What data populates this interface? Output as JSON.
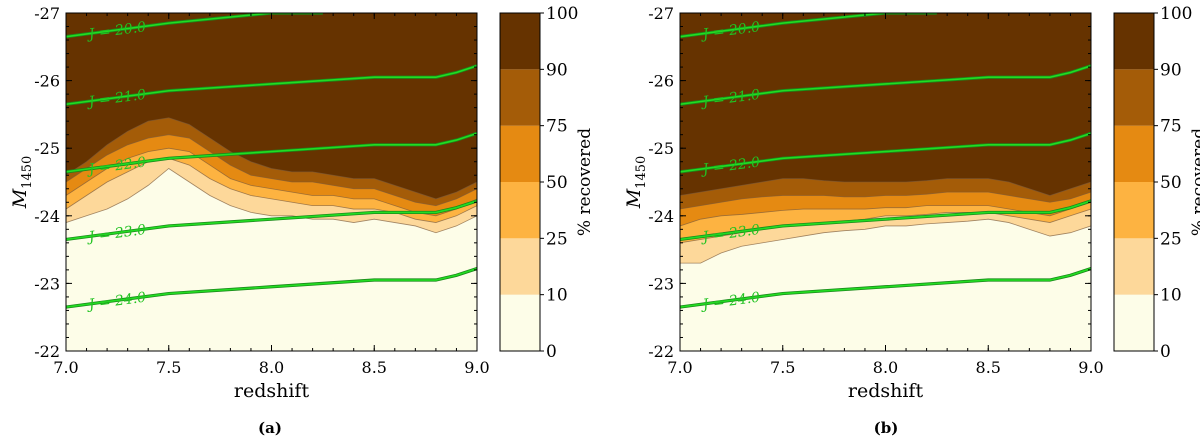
{
  "chart_data": [
    {
      "type": "contourf",
      "panel_label": "(a)",
      "xlabel": "redshift",
      "ylabel": "M",
      "ylabel_sub": "1450",
      "xlim": [
        7.0,
        9.0
      ],
      "ylim": [
        -22,
        -27
      ],
      "x_ticks": [
        "7.0",
        "7.5",
        "8.0",
        "8.5",
        "9.0"
      ],
      "y_ticks": [
        "-27",
        "-26",
        "-25",
        "-24",
        "-23",
        "-22"
      ],
      "colorbar": {
        "label": "% recovered",
        "levels": [
          0,
          10,
          25,
          50,
          75,
          90,
          100
        ],
        "tick_labels": [
          "0",
          "10",
          "25",
          "50",
          "75",
          "90",
          "100"
        ],
        "colors": [
          "#fdfde8",
          "#fdd89a",
          "#fdb341",
          "#e58a12",
          "#a45c08",
          "#663300"
        ]
      },
      "x": [
        7.0,
        7.1,
        7.2,
        7.3,
        7.4,
        7.5,
        7.6,
        7.7,
        7.8,
        7.9,
        8.0,
        8.1,
        8.2,
        8.3,
        8.4,
        8.5,
        8.6,
        8.7,
        8.8,
        8.9,
        9.0
      ],
      "recovery_boundaries": [
        {
          "level": 10,
          "M": [
            -23.9,
            -24.0,
            -24.1,
            -24.25,
            -24.45,
            -24.7,
            -24.5,
            -24.3,
            -24.15,
            -24.05,
            -24.0,
            -24.0,
            -23.95,
            -23.95,
            -23.9,
            -23.95,
            -23.9,
            -23.85,
            -23.75,
            -23.85,
            -24.0
          ]
        },
        {
          "level": 25,
          "M": [
            -24.1,
            -24.3,
            -24.5,
            -24.65,
            -24.8,
            -24.85,
            -24.75,
            -24.55,
            -24.4,
            -24.3,
            -24.25,
            -24.2,
            -24.15,
            -24.15,
            -24.1,
            -24.1,
            -24.05,
            -23.95,
            -23.9,
            -24.0,
            -24.15
          ]
        },
        {
          "level": 50,
          "M": [
            -24.3,
            -24.5,
            -24.7,
            -24.85,
            -24.95,
            -25.0,
            -24.95,
            -24.75,
            -24.55,
            -24.45,
            -24.4,
            -24.35,
            -24.3,
            -24.3,
            -24.25,
            -24.25,
            -24.15,
            -24.05,
            -24.0,
            -24.1,
            -24.25
          ]
        },
        {
          "level": 75,
          "M": [
            -24.5,
            -24.7,
            -24.9,
            -25.05,
            -25.15,
            -25.2,
            -25.15,
            -24.95,
            -24.75,
            -24.6,
            -24.55,
            -24.5,
            -24.5,
            -24.45,
            -24.4,
            -24.4,
            -24.3,
            -24.2,
            -24.15,
            -24.25,
            -24.4
          ]
        },
        {
          "level": 90,
          "M": [
            -24.6,
            -24.8,
            -25.05,
            -25.25,
            -25.4,
            -25.45,
            -25.35,
            -25.15,
            -24.95,
            -24.8,
            -24.7,
            -24.65,
            -24.65,
            -24.6,
            -24.55,
            -24.55,
            -24.45,
            -24.35,
            -24.25,
            -24.35,
            -24.5
          ]
        }
      ],
      "magnitude_contours": [
        {
          "label": "J = 20.0",
          "x": [
            7.0,
            7.5,
            8.0,
            8.25
          ],
          "M": [
            -26.65,
            -26.85,
            -27.0,
            -27.0
          ]
        },
        {
          "label": "J = 21.0",
          "x": [
            7.0,
            7.5,
            8.0,
            8.5,
            8.8,
            8.9,
            9.0
          ],
          "M": [
            -25.65,
            -25.85,
            -25.95,
            -26.05,
            -26.05,
            -26.12,
            -26.22
          ]
        },
        {
          "label": "J = 22.0",
          "x": [
            7.0,
            7.5,
            8.0,
            8.5,
            8.8,
            8.9,
            9.0
          ],
          "M": [
            -24.65,
            -24.85,
            -24.95,
            -25.05,
            -25.05,
            -25.12,
            -25.22
          ]
        },
        {
          "label": "J = 23.0",
          "x": [
            7.0,
            7.5,
            8.0,
            8.5,
            8.8,
            8.9,
            9.0
          ],
          "M": [
            -23.65,
            -23.85,
            -23.95,
            -24.05,
            -24.05,
            -24.12,
            -24.22
          ]
        },
        {
          "label": "J = 24.0",
          "x": [
            7.0,
            7.5,
            8.0,
            8.5,
            8.8,
            8.9,
            9.0
          ],
          "M": [
            -22.65,
            -22.85,
            -22.95,
            -23.05,
            -23.05,
            -23.12,
            -23.22
          ]
        }
      ]
    },
    {
      "type": "contourf",
      "panel_label": "(b)",
      "xlabel": "redshift",
      "ylabel": "M",
      "ylabel_sub": "1450",
      "xlim": [
        7.0,
        9.0
      ],
      "ylim": [
        -22,
        -27
      ],
      "x_ticks": [
        "7.0",
        "7.5",
        "8.0",
        "8.5",
        "9.0"
      ],
      "y_ticks": [
        "-27",
        "-26",
        "-25",
        "-24",
        "-23",
        "-22"
      ],
      "colorbar": {
        "label": "% recovered",
        "levels": [
          0,
          10,
          25,
          50,
          75,
          90,
          100
        ],
        "tick_labels": [
          "0",
          "10",
          "25",
          "50",
          "75",
          "90",
          "100"
        ],
        "colors": [
          "#fdfde8",
          "#fdd89a",
          "#fdb341",
          "#e58a12",
          "#a45c08",
          "#663300"
        ]
      },
      "x": [
        7.0,
        7.1,
        7.2,
        7.3,
        7.4,
        7.5,
        7.6,
        7.7,
        7.8,
        7.9,
        8.0,
        8.1,
        8.2,
        8.3,
        8.4,
        8.5,
        8.6,
        8.7,
        8.8,
        8.9,
        9.0
      ],
      "recovery_boundaries": [
        {
          "level": 10,
          "M": [
            -23.3,
            -23.3,
            -23.45,
            -23.55,
            -23.6,
            -23.65,
            -23.7,
            -23.75,
            -23.78,
            -23.8,
            -23.85,
            -23.85,
            -23.88,
            -23.9,
            -23.92,
            -23.95,
            -23.9,
            -23.8,
            -23.7,
            -23.75,
            -23.85
          ]
        },
        {
          "level": 25,
          "M": [
            -23.6,
            -23.65,
            -23.7,
            -23.75,
            -23.8,
            -23.85,
            -23.88,
            -23.9,
            -23.92,
            -23.95,
            -24.0,
            -24.0,
            -24.02,
            -24.05,
            -24.05,
            -24.05,
            -24.0,
            -23.95,
            -23.9,
            -24.0,
            -24.1
          ]
        },
        {
          "level": 50,
          "M": [
            -23.85,
            -23.95,
            -24.0,
            -24.02,
            -24.05,
            -24.08,
            -24.1,
            -24.1,
            -24.1,
            -24.1,
            -24.12,
            -24.12,
            -24.15,
            -24.15,
            -24.15,
            -24.15,
            -24.1,
            -24.05,
            -24.0,
            -24.1,
            -24.2
          ]
        },
        {
          "level": 75,
          "M": [
            -24.1,
            -24.15,
            -24.2,
            -24.25,
            -24.28,
            -24.3,
            -24.3,
            -24.3,
            -24.28,
            -24.28,
            -24.3,
            -24.3,
            -24.32,
            -24.35,
            -24.35,
            -24.35,
            -24.3,
            -24.25,
            -24.2,
            -24.25,
            -24.35
          ]
        },
        {
          "level": 90,
          "M": [
            -24.3,
            -24.35,
            -24.4,
            -24.45,
            -24.5,
            -24.55,
            -24.55,
            -24.52,
            -24.5,
            -24.5,
            -24.5,
            -24.5,
            -24.52,
            -24.55,
            -24.55,
            -24.55,
            -24.5,
            -24.4,
            -24.3,
            -24.4,
            -24.5
          ]
        }
      ],
      "magnitude_contours": [
        {
          "label": "J = 20.0",
          "x": [
            7.0,
            7.5,
            8.0,
            8.25
          ],
          "M": [
            -26.65,
            -26.85,
            -27.0,
            -27.0
          ]
        },
        {
          "label": "J = 21.0",
          "x": [
            7.0,
            7.5,
            8.0,
            8.5,
            8.8,
            8.9,
            9.0
          ],
          "M": [
            -25.65,
            -25.85,
            -25.95,
            -26.05,
            -26.05,
            -26.12,
            -26.22
          ]
        },
        {
          "label": "J = 22.0",
          "x": [
            7.0,
            7.5,
            8.0,
            8.5,
            8.8,
            8.9,
            9.0
          ],
          "M": [
            -24.65,
            -24.85,
            -24.95,
            -25.05,
            -25.05,
            -25.12,
            -25.22
          ]
        },
        {
          "label": "J = 23.0",
          "x": [
            7.0,
            7.5,
            8.0,
            8.5,
            8.8,
            8.9,
            9.0
          ],
          "M": [
            -23.65,
            -23.85,
            -23.95,
            -24.05,
            -24.05,
            -24.12,
            -24.22
          ]
        },
        {
          "label": "J = 24.0",
          "x": [
            7.0,
            7.5,
            8.0,
            8.5,
            8.8,
            8.9,
            9.0
          ],
          "M": [
            -22.65,
            -22.85,
            -22.95,
            -23.05,
            -23.05,
            -23.12,
            -23.22
          ]
        }
      ]
    }
  ],
  "colors": {
    "magnitude_contour": "#22dd22",
    "magnitude_contour_shadow": "#1a8a1a",
    "boundary_line": "#7a5a3a",
    "axis": "#000000"
  }
}
